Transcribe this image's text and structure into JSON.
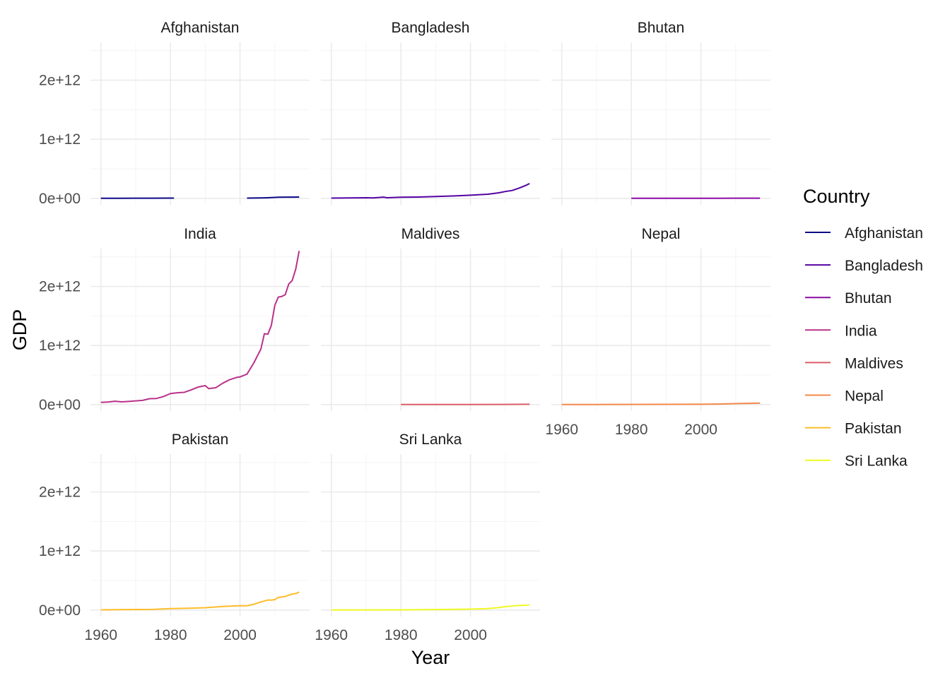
{
  "chart_data": {
    "type": "line",
    "xlabel": "Year",
    "ylabel": "GDP",
    "xlim": [
      1957,
      2020
    ],
    "ylim": [
      -110000000000.0,
      2640000000000.0
    ],
    "x_ticks": [
      1960,
      1980,
      2000
    ],
    "x_tick_labels": [
      "1960",
      "1980",
      "2000"
    ],
    "y_ticks": [
      0,
      1000000000000,
      2000000000000
    ],
    "y_tick_labels": [
      "0e+00",
      "1e+12",
      "2e+12"
    ],
    "grid": true,
    "legend": {
      "title": "Country",
      "position": "right"
    },
    "colors": {
      "Afghanistan": "#0d0887",
      "Bangladesh": "#5402a3",
      "Bhutan": "#8b0aa5",
      "India": "#b93289",
      "Maldives": "#db5c68",
      "Nepal": "#f48849",
      "Pakistan": "#febc2a",
      "Sri Lanka": "#f0f921"
    },
    "series": [
      {
        "name": "Afghanistan",
        "segments": [
          [
            [
              1960,
              540000000.0
            ],
            [
              1965,
              1000000000.0
            ],
            [
              1970,
              1750000000.0
            ],
            [
              1975,
              2370000000.0
            ],
            [
              1980,
              3640000000.0
            ],
            [
              1981,
              3480000000.0
            ]
          ],
          [
            [
              2002,
              4060000000.0
            ],
            [
              2004,
              5290000000.0
            ],
            [
              2006,
              6970000000.0
            ],
            [
              2008,
              10100000000.0
            ],
            [
              2009,
              12500000000.0
            ],
            [
              2011,
              18000000000.0
            ],
            [
              2013,
              20500000000.0
            ],
            [
              2015,
              19900000000.0
            ],
            [
              2017,
              20800000000.0
            ]
          ]
        ]
      },
      {
        "name": "Bangladesh",
        "segments": [
          [
            [
              1960,
              4270000000.0
            ],
            [
              1965,
              6000000000.0
            ],
            [
              1970,
              8990000000.0
            ],
            [
              1972,
              6290000000.0
            ],
            [
              1975,
              19600000000.0
            ],
            [
              1976,
              10100000000.0
            ],
            [
              1980,
              18200000000.0
            ],
            [
              1985,
              22000000000.0
            ],
            [
              1990,
              31000000000.0
            ],
            [
              1995,
              40000000000.0
            ],
            [
              2000,
              53400000000.0
            ],
            [
              2005,
              69000000000.0
            ],
            [
              2008,
              91700000000.0
            ],
            [
              2010,
              115000000000.0
            ],
            [
              2012,
              133000000000.0
            ],
            [
              2014,
              173000000000.0
            ],
            [
              2016,
              221000000000.0
            ],
            [
              2017,
              250000000000.0
            ]
          ]
        ]
      },
      {
        "name": "Bhutan",
        "segments": [
          [
            [
              1980,
              140000000.0
            ],
            [
              1990,
              290000000.0
            ],
            [
              2000,
              440000000.0
            ],
            [
              2010,
              1500000000.0
            ],
            [
              2017,
              2400000000.0
            ]
          ]
        ]
      },
      {
        "name": "India",
        "segments": [
          [
            [
              1960,
              37000000000.0
            ],
            [
              1962,
              42000000000.0
            ],
            [
              1964,
              56000000000.0
            ],
            [
              1966,
              46000000000.0
            ],
            [
              1968,
              53000000000.0
            ],
            [
              1970,
              62000000000.0
            ],
            [
              1972,
              71000000000.0
            ],
            [
              1974,
              99000000000.0
            ],
            [
              1976,
              103000000000.0
            ],
            [
              1978,
              136000000000.0
            ],
            [
              1980,
              186000000000.0
            ],
            [
              1982,
              200000000000.0
            ],
            [
              1984,
              207000000000.0
            ],
            [
              1986,
              249000000000.0
            ],
            [
              1988,
              297000000000.0
            ],
            [
              1990,
              320000000000.0
            ],
            [
              1991,
              270000000000.0
            ],
            [
              1993,
              284000000000.0
            ],
            [
              1995,
              360000000000.0
            ],
            [
              1997,
              420000000000.0
            ],
            [
              1999,
              459000000000.0
            ],
            [
              2000,
              468000000000.0
            ],
            [
              2002,
              515000000000.0
            ],
            [
              2004,
              709000000000.0
            ],
            [
              2006,
              940000000000.0
            ],
            [
              2007,
              1200000000000.0
            ],
            [
              2008,
              1190000000000.0
            ],
            [
              2009,
              1340000000000.0
            ],
            [
              2010,
              1680000000000.0
            ],
            [
              2011,
              1820000000000.0
            ],
            [
              2012,
              1830000000000.0
            ],
            [
              2013,
              1860000000000.0
            ],
            [
              2014,
              2040000000000.0
            ],
            [
              2015,
              2100000000000.0
            ],
            [
              2016,
              2290000000000.0
            ],
            [
              2017,
              2600000000000.0
            ]
          ]
        ]
      },
      {
        "name": "Maldives",
        "segments": [
          [
            [
              1980,
              40000000.0
            ],
            [
              1990,
              200000000.0
            ],
            [
              2000,
              620000000.0
            ],
            [
              2010,
              2600000000.0
            ],
            [
              2017,
              4900000000.0
            ]
          ]
        ]
      },
      {
        "name": "Nepal",
        "segments": [
          [
            [
              1960,
              510000000.0
            ],
            [
              1970,
              870000000.0
            ],
            [
              1980,
              1950000000.0
            ],
            [
              1990,
              3600000000.0
            ],
            [
              2000,
              5500000000.0
            ],
            [
              2005,
              8100000000.0
            ],
            [
              2010,
              16000000000.0
            ],
            [
              2015,
              21000000000.0
            ],
            [
              2017,
              25000000000.0
            ]
          ]
        ]
      },
      {
        "name": "Pakistan",
        "segments": [
          [
            [
              1960,
              3700000000.0
            ],
            [
              1965,
              7000000000.0
            ],
            [
              1970,
              10000000000.0
            ],
            [
              1972,
              9300000000.0
            ],
            [
              1975,
              11000000000.0
            ],
            [
              1980,
              24000000000.0
            ],
            [
              1985,
              31000000000.0
            ],
            [
              1990,
              40000000000.0
            ],
            [
              1995,
              61000000000.0
            ],
            [
              2000,
              74000000000.0
            ],
            [
              2002,
              72000000000.0
            ],
            [
              2004,
              98000000000.0
            ],
            [
              2006,
              137000000000.0
            ],
            [
              2008,
              170000000000.0
            ],
            [
              2009,
              168000000000.0
            ],
            [
              2010,
              177000000000.0
            ],
            [
              2011,
              213000000000.0
            ],
            [
              2013,
              231000000000.0
            ],
            [
              2015,
              271000000000.0
            ],
            [
              2016,
              279000000000.0
            ],
            [
              2017,
              305000000000.0
            ]
          ]
        ]
      },
      {
        "name": "Sri Lanka",
        "segments": [
          [
            [
              1960,
              1400000000.0
            ],
            [
              1970,
              2300000000.0
            ],
            [
              1980,
              4000000000.0
            ],
            [
              1990,
              8000000000.0
            ],
            [
              2000,
              16000000000.0
            ],
            [
              2005,
              24000000000.0
            ],
            [
              2008,
              41000000000.0
            ],
            [
              2010,
              57000000000.0
            ],
            [
              2012,
              68000000000.0
            ],
            [
              2014,
              79000000000.0
            ],
            [
              2016,
              82000000000.0
            ],
            [
              2017,
              88000000000.0
            ]
          ]
        ]
      }
    ]
  }
}
